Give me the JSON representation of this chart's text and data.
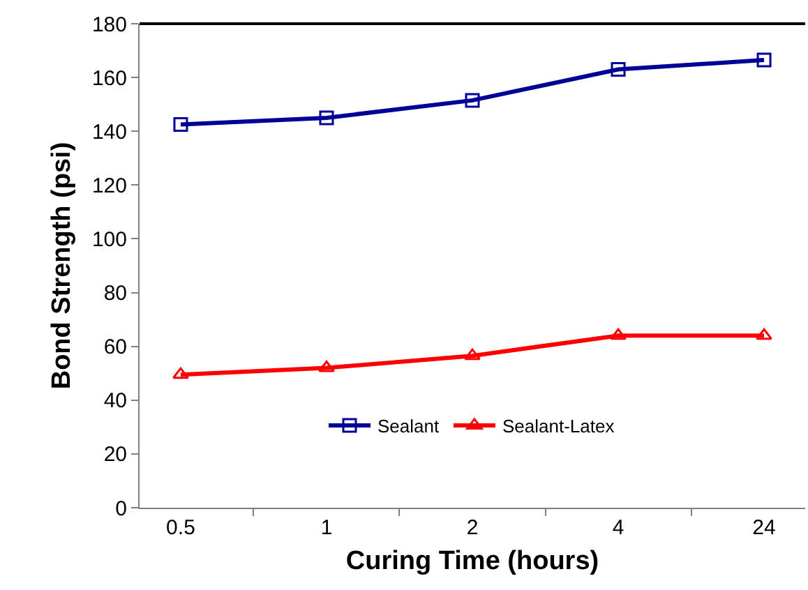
{
  "chart_data": {
    "type": "line",
    "xlabel": "Curing Time (hours)",
    "ylabel": "Bond Strength (psi)",
    "categories": [
      "0.5",
      "1",
      "2",
      "4",
      "24"
    ],
    "series": [
      {
        "name": "Sealant",
        "color": "#000099",
        "marker": "square",
        "values": [
          142.5,
          145,
          151.5,
          163,
          166.5
        ]
      },
      {
        "name": "Sealant-Latex",
        "color": "#ff0000",
        "marker": "triangle",
        "values": [
          49.5,
          52,
          56.5,
          64,
          64
        ]
      }
    ],
    "ylim": [
      0,
      180
    ],
    "yticks": [
      0,
      20,
      40,
      60,
      80,
      100,
      120,
      140,
      160,
      180
    ],
    "grid": false,
    "legend": "bottom",
    "line_style": "solid"
  }
}
